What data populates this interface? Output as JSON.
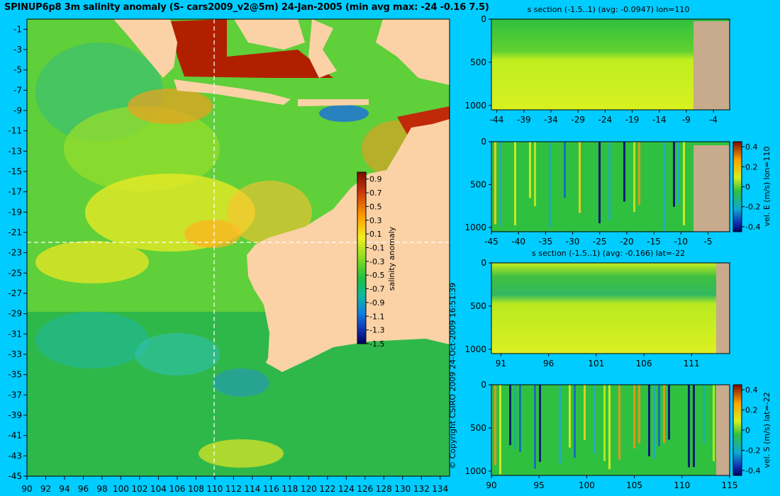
{
  "title": "SPINUP6p8 3m salinity anomaly (S- cars2009_v2@5m) 24-Jan-2005 (min avg max: -24 -0.16 7.5)",
  "copyright": "© Copyright CSIRO 2009  24-Oct-2009 16:51:39",
  "colors": {
    "background": "#00ccff",
    "land": "#fad2a6",
    "section_land": "#c8aa8c"
  },
  "chart_data": [
    {
      "id": "map",
      "type": "heatmap",
      "title": "SPINUP6p8 3m salinity anomaly (S- cars2009_v2@5m) 24-Jan-2005 (min avg max: -24 -0.16 7.5)",
      "xlim": [
        90,
        135
      ],
      "ylim": [
        -45,
        0
      ],
      "xticks": [
        "90",
        "92",
        "94",
        "96",
        "98",
        "100",
        "102",
        "104",
        "106",
        "108",
        "110",
        "112",
        "114",
        "116",
        "118",
        "120",
        "122",
        "124",
        "126",
        "128",
        "130",
        "132",
        "134"
      ],
      "yticks": [
        "-1",
        "-3",
        "-5",
        "-7",
        "-9",
        "-11",
        "-13",
        "-15",
        "-17",
        "-19",
        "-21",
        "-23",
        "-25",
        "-27",
        "-29",
        "-31",
        "-33",
        "-35",
        "-37",
        "-39",
        "-41",
        "-43",
        "-45"
      ],
      "colorbar_label": "salinity anomaly",
      "colorbar_ticks": [
        "0.9",
        "0.7",
        "0.5",
        "0.3",
        "0.1",
        "-0.1",
        "-0.3",
        "-0.5",
        "-0.7",
        "-0.9",
        "-1.1",
        "-1.3",
        "-1.5"
      ],
      "colorbar_range": [
        -1.5,
        1.0
      ],
      "crosshair": {
        "lon": 110,
        "lat": -22
      }
    },
    {
      "id": "section-s-lon110",
      "type": "heatmap",
      "title": "s section (-1.5..1) (avg: -0.0947) lon=110",
      "xticks": [
        "-44",
        "-39",
        "-34",
        "-29",
        "-24",
        "-19",
        "-14",
        "-9",
        "-4"
      ],
      "yticks": [
        "0",
        "500",
        "1000"
      ]
    },
    {
      "id": "section-velE-lon110",
      "type": "heatmap",
      "title": "",
      "xticks": [
        "-45",
        "-40",
        "-35",
        "-30",
        "-25",
        "-20",
        "-15",
        "-10",
        "-5"
      ],
      "yticks": [
        "0",
        "500",
        "1000"
      ],
      "colorbar_label": "vel. E (m/s) lon=110",
      "colorbar_ticks": [
        "0.4",
        "0.2",
        "0",
        "-0.2",
        "-0.4"
      ]
    },
    {
      "id": "section-s-lat-22",
      "type": "heatmap",
      "title": "s section (-1.5..1) (avg: -0.166) lat=-22",
      "xticks": [
        "91",
        "96",
        "101",
        "106",
        "111"
      ],
      "yticks": [
        "0",
        "500",
        "1000"
      ]
    },
    {
      "id": "section-velS-lat-22",
      "type": "heatmap",
      "title": "",
      "xticks": [
        "90",
        "95",
        "100",
        "105",
        "110",
        "115"
      ],
      "yticks": [
        "0",
        "500",
        "1000"
      ],
      "colorbar_label": "vel. S (m/s) lat=-22",
      "colorbar_ticks": [
        "0.4",
        "0.2",
        "0",
        "-0.2",
        "-0.4"
      ]
    }
  ]
}
